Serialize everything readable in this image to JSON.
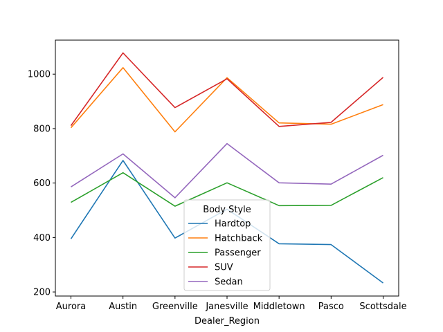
{
  "chart_data": {
    "type": "line",
    "xlabel": "Dealer_Region",
    "ylabel": "",
    "categories": [
      "Aurora",
      "Austin",
      "Greenville",
      "Janesville",
      "Middletown",
      "Pasco",
      "Scottsdale"
    ],
    "ylim": [
      185,
      1125
    ],
    "yticks": [
      200,
      400,
      600,
      800,
      1000
    ],
    "grid": false,
    "legend": {
      "title": "Body Style",
      "placement": "lower-center"
    },
    "series": [
      {
        "name": "Hardtop",
        "color": "#1f77b4",
        "values": [
          395,
          683,
          398,
          504,
          377,
          374,
          233
        ]
      },
      {
        "name": "Hatchback",
        "color": "#ff7f0e",
        "values": [
          803,
          1024,
          788,
          987,
          821,
          816,
          888
        ]
      },
      {
        "name": "Passenger",
        "color": "#2ca02c",
        "values": [
          529,
          638,
          515,
          601,
          517,
          518,
          620
        ]
      },
      {
        "name": "SUV",
        "color": "#d62728",
        "values": [
          811,
          1078,
          877,
          983,
          808,
          823,
          988
        ]
      },
      {
        "name": "Sedan",
        "color": "#9467bd",
        "values": [
          586,
          707,
          546,
          745,
          601,
          596,
          702
        ]
      }
    ]
  }
}
